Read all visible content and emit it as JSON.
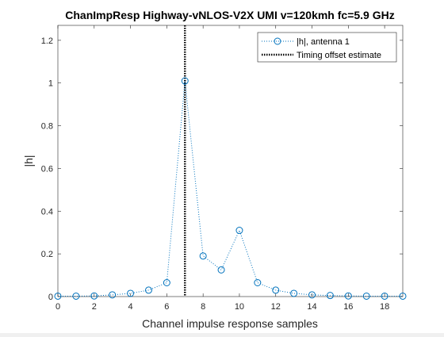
{
  "chart_data": {
    "type": "line",
    "title": "ChanImpResp Highway-vNLOS-V2X UMI v=120kmh fc=5.9 GHz",
    "xlabel": "Channel impulse response samples",
    "ylabel": "|h|",
    "xlim": [
      0,
      19
    ],
    "ylim": [
      0,
      1.27
    ],
    "xticks": [
      0,
      2,
      4,
      6,
      8,
      10,
      12,
      14,
      16,
      18
    ],
    "yticks": [
      0,
      0.2,
      0.4,
      0.6,
      0.8,
      1,
      1.2
    ],
    "grid": false,
    "legend_position": "top-right",
    "series": [
      {
        "name": "|h|, antenna 1",
        "style": "dotted line with circle markers",
        "color": "#0072bd",
        "x": [
          0,
          1,
          2,
          3,
          4,
          5,
          6,
          7,
          8,
          9,
          10,
          11,
          12,
          13,
          14,
          15,
          16,
          17,
          18,
          19
        ],
        "y": [
          0.002,
          0.002,
          0.003,
          0.008,
          0.015,
          0.03,
          0.065,
          1.01,
          0.19,
          0.125,
          0.31,
          0.065,
          0.03,
          0.015,
          0.008,
          0.005,
          0.003,
          0.002,
          0.002,
          0.002
        ]
      }
    ],
    "vlines": [
      {
        "name": "Timing offset estimate",
        "x": 7,
        "style": "dotted",
        "color": "#000000"
      }
    ]
  }
}
